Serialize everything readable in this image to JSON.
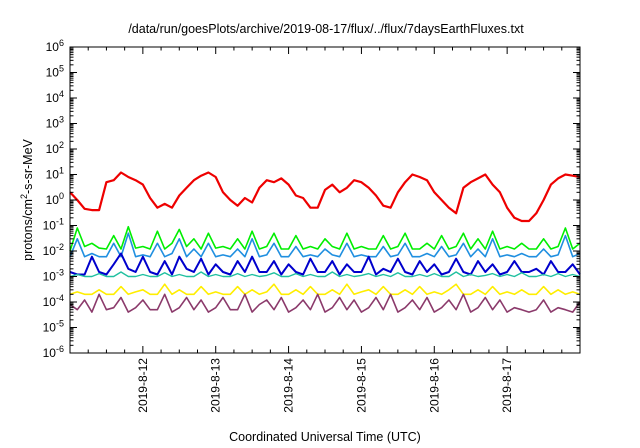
{
  "chart_data": {
    "type": "line",
    "title": "/data/run/goesPlots/archive/2019-08-17/flux/../flux/7daysEarthFluxes.txt",
    "xlabel": "Coordinated Universal Time (UTC)",
    "ylabel_parts": [
      "protons/cm",
      "2",
      "-s-sr-MeV"
    ],
    "yscale": "log",
    "ylim_exp": [
      -6,
      6
    ],
    "ytick_exponents": [
      "-6",
      "-5",
      "-4",
      "-3",
      "-2",
      "-1",
      "0",
      "1",
      "2",
      "3",
      "4",
      "5",
      "6"
    ],
    "ytick_base": "10",
    "xlim": [
      0,
      7
    ],
    "xticks": [
      {
        "x": 1,
        "label": "2019-8-12"
      },
      {
        "x": 2,
        "label": "2019-8-13"
      },
      {
        "x": 3,
        "label": "2019-8-14"
      },
      {
        "x": 4,
        "label": "2019-8-15"
      },
      {
        "x": 5,
        "label": "2019-8-16"
      },
      {
        "x": 6,
        "label": "2019-8-17"
      }
    ],
    "grid": false,
    "legend": "none",
    "x": [
      0,
      0.1,
      0.2,
      0.3,
      0.4,
      0.5,
      0.6,
      0.7,
      0.8,
      0.9,
      1,
      1.1,
      1.2,
      1.3,
      1.4,
      1.5,
      1.6,
      1.7,
      1.8,
      1.9,
      2,
      2.1,
      2.2,
      2.3,
      2.4,
      2.5,
      2.6,
      2.7,
      2.8,
      2.9,
      3,
      3.1,
      3.2,
      3.3,
      3.4,
      3.5,
      3.6,
      3.7,
      3.8,
      3.9,
      4,
      4.1,
      4.2,
      4.3,
      4.4,
      4.5,
      4.6,
      4.7,
      4.8,
      4.9,
      5,
      5.1,
      5.2,
      5.3,
      5.4,
      5.5,
      5.6,
      5.7,
      5.8,
      5.9,
      6,
      6.1,
      6.2,
      6.3,
      6.4,
      6.5,
      6.6,
      6.7,
      6.8,
      6.9,
      7
    ],
    "series": [
      {
        "color": "#ee0000",
        "width": 2.2,
        "values": [
          2,
          1,
          0.45,
          0.4,
          0.4,
          5,
          6,
          12,
          8,
          6,
          4,
          1.2,
          0.5,
          0.7,
          0.5,
          1.5,
          3,
          6,
          9,
          12,
          8,
          2,
          1,
          0.6,
          1.2,
          0.8,
          3,
          6,
          5,
          7,
          4,
          1.5,
          1.2,
          0.5,
          0.5,
          2.5,
          4,
          2,
          3,
          6,
          5,
          3,
          1.5,
          0.6,
          0.5,
          2,
          5,
          10,
          8,
          6,
          2,
          1,
          0.5,
          0.3,
          3,
          5,
          7,
          10,
          4,
          2,
          0.5,
          0.2,
          0.15,
          0.15,
          0.3,
          1,
          4,
          7,
          10,
          9,
          8
        ]
      },
      {
        "color": "#00ee00",
        "width": 1.6,
        "values": [
          0.01,
          0.08,
          0.015,
          0.02,
          0.013,
          0.012,
          0.04,
          0.012,
          0.09,
          0.013,
          0.015,
          0.012,
          0.06,
          0.012,
          0.02,
          0.07,
          0.015,
          0.03,
          0.012,
          0.05,
          0.013,
          0.015,
          0.012,
          0.03,
          0.012,
          0.06,
          0.012,
          0.015,
          0.05,
          0.012,
          0.012,
          0.04,
          0.012,
          0.015,
          0.012,
          0.03,
          0.015,
          0.012,
          0.05,
          0.012,
          0.015,
          0.012,
          0.012,
          0.04,
          0.012,
          0.015,
          0.05,
          0.012,
          0.012,
          0.02,
          0.012,
          0.04,
          0.012,
          0.015,
          0.05,
          0.012,
          0.03,
          0.012,
          0.06,
          0.012,
          0.015,
          0.012,
          0.02,
          0.012,
          0.012,
          0.03,
          0.012,
          0.015,
          0.08,
          0.012,
          0.02
        ]
      },
      {
        "color": "#1f8fe0",
        "width": 1.6,
        "values": [
          0.006,
          0.03,
          0.006,
          0.008,
          0.006,
          0.006,
          0.02,
          0.006,
          0.05,
          0.006,
          0.007,
          0.006,
          0.02,
          0.006,
          0.008,
          0.03,
          0.006,
          0.012,
          0.006,
          0.02,
          0.006,
          0.007,
          0.006,
          0.012,
          0.006,
          0.03,
          0.006,
          0.007,
          0.02,
          0.006,
          0.006,
          0.015,
          0.006,
          0.007,
          0.006,
          0.012,
          0.007,
          0.006,
          0.02,
          0.006,
          0.007,
          0.006,
          0.006,
          0.015,
          0.006,
          0.007,
          0.02,
          0.006,
          0.006,
          0.008,
          0.006,
          0.015,
          0.006,
          0.007,
          0.02,
          0.006,
          0.012,
          0.006,
          0.03,
          0.006,
          0.007,
          0.006,
          0.008,
          0.006,
          0.006,
          0.012,
          0.006,
          0.007,
          0.04,
          0.006,
          0.008
        ]
      },
      {
        "color": "#0000cc",
        "width": 2.0,
        "values": [
          0.0015,
          0.0012,
          0.0012,
          0.006,
          0.0015,
          0.0012,
          0.003,
          0.008,
          0.002,
          0.0015,
          0.006,
          0.0015,
          0.0012,
          0.004,
          0.0012,
          0.006,
          0.002,
          0.0015,
          0.005,
          0.0012,
          0.003,
          0.0015,
          0.0012,
          0.004,
          0.0015,
          0.006,
          0.0015,
          0.0015,
          0.004,
          0.0012,
          0.003,
          0.0015,
          0.0012,
          0.005,
          0.0015,
          0.0015,
          0.004,
          0.0012,
          0.003,
          0.0015,
          0.0015,
          0.006,
          0.0012,
          0.002,
          0.0015,
          0.005,
          0.0015,
          0.0012,
          0.004,
          0.0015,
          0.003,
          0.0012,
          0.0015,
          0.005,
          0.0015,
          0.0012,
          0.004,
          0.0015,
          0.003,
          0.0012,
          0.0015,
          0.004,
          0.0015,
          0.0015,
          0.002,
          0.0012,
          0.004,
          0.0015,
          0.0015,
          0.003,
          0.0012
        ]
      },
      {
        "color": "#20c0a0",
        "width": 1.4,
        "values": [
          0.001,
          0.0012,
          0.001,
          0.001,
          0.0013,
          0.001,
          0.001,
          0.0015,
          0.001,
          0.001,
          0.0012,
          0.001,
          0.001,
          0.0014,
          0.001,
          0.0012,
          0.001,
          0.001,
          0.0015,
          0.001,
          0.0012,
          0.001,
          0.001,
          0.0013,
          0.001,
          0.0012,
          0.001,
          0.0011,
          0.0014,
          0.001,
          0.001,
          0.0013,
          0.001,
          0.0012,
          0.001,
          0.001,
          0.0015,
          0.001,
          0.0012,
          0.001,
          0.0011,
          0.0013,
          0.001,
          0.0012,
          0.001,
          0.0014,
          0.001,
          0.001,
          0.0012,
          0.001,
          0.0013,
          0.001,
          0.001,
          0.0015,
          0.001,
          0.0012,
          0.001,
          0.0011,
          0.0013,
          0.001,
          0.0012,
          0.001,
          0.0014,
          0.001,
          0.001,
          0.0012,
          0.001,
          0.0013,
          0.001,
          0.0012,
          0.001
        ]
      },
      {
        "color": "#ffee00",
        "width": 1.6,
        "values": [
          0.0002,
          0.00025,
          0.0002,
          0.0002,
          0.0003,
          0.0002,
          0.0002,
          0.0004,
          0.0002,
          0.00025,
          0.0003,
          0.0002,
          0.0002,
          0.0005,
          0.0002,
          0.0003,
          0.0002,
          0.0002,
          0.0004,
          0.0002,
          0.00025,
          0.0002,
          0.0002,
          0.0004,
          0.0002,
          0.0003,
          0.0002,
          0.00025,
          0.0005,
          0.0002,
          0.0002,
          0.0003,
          0.0002,
          0.0004,
          0.0002,
          0.0002,
          0.0003,
          0.0002,
          0.0005,
          0.0002,
          0.00025,
          0.0003,
          0.0002,
          0.0004,
          0.0002,
          0.0002,
          0.0003,
          0.0002,
          0.0004,
          0.0002,
          0.00025,
          0.0002,
          0.0003,
          0.0005,
          0.0002,
          0.0002,
          0.0003,
          0.0002,
          0.0004,
          0.0002,
          0.00025,
          0.0002,
          0.0003,
          0.0002,
          0.0002,
          0.0004,
          0.0002,
          0.0003,
          0.0002,
          0.00025,
          0.0002
        ]
      },
      {
        "color": "#8b3a6b",
        "width": 1.6,
        "values": [
          8e-05,
          5e-05,
          0.00012,
          4e-05,
          0.0002,
          5e-05,
          6e-05,
          0.00015,
          4e-05,
          6e-05,
          0.00012,
          5e-05,
          5e-05,
          0.0002,
          4e-05,
          6e-05,
          0.00015,
          5e-05,
          0.00012,
          4e-05,
          6e-05,
          0.00015,
          5e-05,
          5e-05,
          0.0002,
          4e-05,
          8e-05,
          0.00012,
          5e-05,
          0.00015,
          4e-05,
          6e-05,
          0.00012,
          5e-05,
          0.0002,
          4e-05,
          6e-05,
          0.00015,
          5e-05,
          0.00012,
          4e-05,
          6e-05,
          0.00015,
          5e-05,
          0.0002,
          4e-05,
          6e-05,
          0.00012,
          5e-05,
          0.00015,
          4e-05,
          6e-05,
          0.00012,
          5e-05,
          0.0002,
          4e-05,
          6e-05,
          0.00015,
          5e-05,
          0.00012,
          4e-05,
          6e-05,
          5e-05,
          4e-05,
          5e-05,
          0.00012,
          4e-05,
          6e-05,
          5e-05,
          4e-05,
          0.0001
        ]
      }
    ]
  }
}
